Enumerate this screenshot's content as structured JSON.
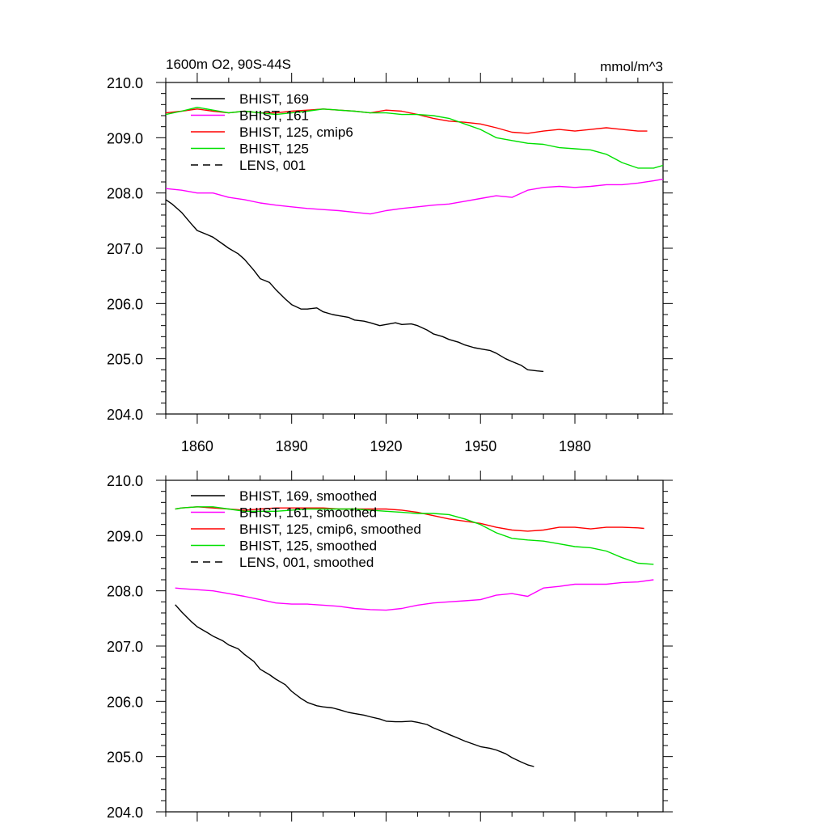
{
  "chart_data": [
    {
      "type": "line",
      "title_left": "1600m O2, 90S-44S",
      "title_right": "mmol/m^3",
      "xlim": [
        1850,
        2008
      ],
      "ylim": [
        204.0,
        210.0
      ],
      "x_ticks": [
        1860,
        1890,
        1920,
        1950,
        1980
      ],
      "x_tick_labels": [
        "1860",
        "1890",
        "1920",
        "1950",
        "1980"
      ],
      "y_ticks": [
        204.0,
        205.0,
        206.0,
        207.0,
        208.0,
        209.0,
        210.0
      ],
      "y_tick_labels": [
        "204.0",
        "205.0",
        "206.0",
        "207.0",
        "208.0",
        "209.0",
        "210.0"
      ],
      "legend_position": "top-left",
      "series": [
        {
          "name": "BHIST, 169",
          "color": "#000000",
          "dash": "solid",
          "x": [
            1850,
            1852,
            1855,
            1858,
            1860,
            1863,
            1865,
            1868,
            1870,
            1873,
            1875,
            1878,
            1880,
            1883,
            1885,
            1888,
            1890,
            1893,
            1895,
            1898,
            1900,
            1903,
            1905,
            1908,
            1910,
            1913,
            1915,
            1918,
            1920,
            1923,
            1925,
            1928,
            1930,
            1933,
            1935,
            1938,
            1940,
            1943,
            1945,
            1948,
            1950,
            1953,
            1955,
            1958,
            1960,
            1963,
            1965,
            1968,
            1970
          ],
          "y": [
            207.88,
            207.8,
            207.65,
            207.45,
            207.32,
            207.25,
            207.2,
            207.08,
            207.0,
            206.9,
            206.8,
            206.6,
            206.45,
            206.38,
            206.25,
            206.08,
            205.98,
            205.9,
            205.9,
            205.92,
            205.85,
            205.8,
            205.78,
            205.75,
            205.7,
            205.68,
            205.65,
            205.6,
            205.62,
            205.65,
            205.62,
            205.63,
            205.6,
            205.52,
            205.45,
            205.4,
            205.35,
            205.3,
            205.25,
            205.2,
            205.18,
            205.15,
            205.1,
            205.0,
            204.95,
            204.88,
            204.8,
            204.78,
            204.77
          ]
        },
        {
          "name": "BHIST, 161",
          "color": "#ff00ff",
          "dash": "solid",
          "x": [
            1850,
            1855,
            1860,
            1865,
            1870,
            1875,
            1880,
            1885,
            1890,
            1895,
            1900,
            1905,
            1910,
            1915,
            1920,
            1925,
            1930,
            1935,
            1940,
            1945,
            1950,
            1955,
            1960,
            1965,
            1970,
            1975,
            1980,
            1985,
            1990,
            1995,
            2000,
            2005,
            2008
          ],
          "y": [
            208.08,
            208.05,
            208.0,
            208.0,
            207.92,
            207.88,
            207.82,
            207.78,
            207.75,
            207.72,
            207.7,
            207.68,
            207.65,
            207.62,
            207.68,
            207.72,
            207.75,
            207.78,
            207.8,
            207.85,
            207.9,
            207.95,
            207.92,
            208.05,
            208.1,
            208.12,
            208.1,
            208.12,
            208.15,
            208.15,
            208.18,
            208.22,
            208.25
          ]
        },
        {
          "name": "BHIST, 125, cmip6",
          "color": "#ff0000",
          "dash": "solid",
          "x": [
            1850,
            1855,
            1860,
            1865,
            1870,
            1875,
            1880,
            1885,
            1890,
            1895,
            1900,
            1905,
            1910,
            1915,
            1920,
            1925,
            1930,
            1935,
            1940,
            1945,
            1950,
            1955,
            1960,
            1965,
            1970,
            1975,
            1980,
            1985,
            1990,
            1995,
            2000,
            2003
          ],
          "y": [
            209.45,
            209.48,
            209.52,
            209.48,
            209.45,
            209.48,
            209.45,
            209.45,
            209.48,
            209.5,
            209.52,
            209.5,
            209.48,
            209.45,
            209.5,
            209.48,
            209.42,
            209.35,
            209.3,
            209.28,
            209.25,
            209.18,
            209.1,
            209.08,
            209.12,
            209.15,
            209.12,
            209.15,
            209.18,
            209.15,
            209.12,
            209.12
          ]
        },
        {
          "name": "BHIST, 125",
          "color": "#00e000",
          "dash": "solid",
          "x": [
            1850,
            1855,
            1860,
            1865,
            1870,
            1875,
            1880,
            1885,
            1890,
            1895,
            1900,
            1905,
            1910,
            1915,
            1920,
            1925,
            1930,
            1935,
            1940,
            1945,
            1950,
            1955,
            1960,
            1965,
            1970,
            1975,
            1980,
            1985,
            1990,
            1995,
            2000,
            2003,
            2005,
            2008
          ],
          "y": [
            209.42,
            209.48,
            209.55,
            209.5,
            209.45,
            209.48,
            209.45,
            209.42,
            209.45,
            209.48,
            209.52,
            209.5,
            209.48,
            209.45,
            209.45,
            209.42,
            209.42,
            209.4,
            209.35,
            209.25,
            209.15,
            209.0,
            208.95,
            208.9,
            208.88,
            208.82,
            208.8,
            208.78,
            208.7,
            208.55,
            208.45,
            208.45,
            208.45,
            208.5
          ]
        },
        {
          "name": "LENS, 001",
          "color": "#000000",
          "dash": "dashed",
          "x": [],
          "y": []
        }
      ]
    },
    {
      "type": "line",
      "xlim": [
        1850,
        2008
      ],
      "ylim": [
        204.0,
        210.0
      ],
      "x_ticks": [
        1860,
        1890,
        1920,
        1950,
        1980
      ],
      "y_ticks": [
        204.0,
        205.0,
        206.0,
        207.0,
        208.0,
        209.0,
        210.0
      ],
      "y_tick_labels": [
        "204.0",
        "205.0",
        "206.0",
        "207.0",
        "208.0",
        "209.0",
        "210.0"
      ],
      "legend_position": "top-left",
      "series": [
        {
          "name": "BHIST, 169, smoothed",
          "color": "#000000",
          "dash": "solid",
          "x": [
            1853,
            1855,
            1858,
            1860,
            1863,
            1865,
            1868,
            1870,
            1873,
            1875,
            1878,
            1880,
            1883,
            1885,
            1888,
            1890,
            1893,
            1895,
            1898,
            1900,
            1903,
            1905,
            1908,
            1910,
            1913,
            1915,
            1918,
            1920,
            1923,
            1925,
            1928,
            1930,
            1933,
            1935,
            1938,
            1940,
            1943,
            1945,
            1948,
            1950,
            1953,
            1955,
            1958,
            1960,
            1963,
            1965,
            1967
          ],
          "y": [
            207.75,
            207.62,
            207.45,
            207.35,
            207.25,
            207.18,
            207.1,
            207.02,
            206.95,
            206.85,
            206.72,
            206.58,
            206.48,
            206.4,
            206.3,
            206.18,
            206.05,
            205.98,
            205.92,
            205.9,
            205.88,
            205.85,
            205.8,
            205.78,
            205.75,
            205.72,
            205.68,
            205.64,
            205.63,
            205.63,
            205.64,
            205.62,
            205.58,
            205.52,
            205.45,
            205.4,
            205.33,
            205.28,
            205.22,
            205.18,
            205.15,
            205.12,
            205.05,
            204.98,
            204.9,
            204.85,
            204.82
          ]
        },
        {
          "name": "BHIST, 161, smoothed",
          "color": "#ff00ff",
          "dash": "solid",
          "x": [
            1853,
            1855,
            1860,
            1865,
            1870,
            1875,
            1880,
            1885,
            1890,
            1895,
            1900,
            1905,
            1910,
            1915,
            1920,
            1925,
            1930,
            1935,
            1940,
            1945,
            1950,
            1955,
            1960,
            1965,
            1970,
            1975,
            1980,
            1985,
            1990,
            1995,
            2000,
            2005
          ],
          "y": [
            208.05,
            208.04,
            208.02,
            208.0,
            207.95,
            207.9,
            207.84,
            207.78,
            207.76,
            207.76,
            207.74,
            207.72,
            207.68,
            207.66,
            207.65,
            207.68,
            207.74,
            207.78,
            207.8,
            207.82,
            207.84,
            207.92,
            207.95,
            207.9,
            208.05,
            208.08,
            208.12,
            208.12,
            208.12,
            208.15,
            208.16,
            208.2
          ]
        },
        {
          "name": "BHIST, 125, cmip6, smoothed",
          "color": "#ff0000",
          "dash": "solid",
          "x": [
            1853,
            1855,
            1860,
            1865,
            1870,
            1875,
            1880,
            1885,
            1890,
            1895,
            1900,
            1905,
            1910,
            1915,
            1920,
            1925,
            1930,
            1935,
            1940,
            1945,
            1950,
            1955,
            1960,
            1965,
            1970,
            1975,
            1980,
            1985,
            1990,
            1995,
            2000,
            2002
          ],
          "y": [
            209.48,
            209.5,
            209.52,
            209.5,
            209.48,
            209.46,
            209.48,
            209.5,
            209.5,
            209.5,
            209.5,
            209.48,
            209.48,
            209.48,
            209.48,
            209.46,
            209.42,
            209.36,
            209.3,
            209.26,
            209.22,
            209.15,
            209.1,
            209.08,
            209.1,
            209.15,
            209.15,
            209.12,
            209.15,
            209.15,
            209.14,
            209.13
          ]
        },
        {
          "name": "BHIST, 125, smoothed",
          "color": "#00e000",
          "dash": "solid",
          "x": [
            1853,
            1855,
            1860,
            1865,
            1870,
            1875,
            1880,
            1885,
            1890,
            1895,
            1900,
            1905,
            1910,
            1915,
            1920,
            1925,
            1930,
            1935,
            1940,
            1945,
            1950,
            1955,
            1960,
            1965,
            1970,
            1975,
            1980,
            1985,
            1990,
            1995,
            2000,
            2005
          ],
          "y": [
            209.48,
            209.5,
            209.52,
            209.52,
            209.48,
            209.44,
            209.44,
            209.44,
            209.46,
            209.48,
            209.48,
            209.48,
            209.48,
            209.46,
            209.44,
            209.42,
            209.4,
            209.4,
            209.38,
            209.3,
            209.2,
            209.05,
            208.95,
            208.92,
            208.9,
            208.85,
            208.8,
            208.78,
            208.72,
            208.6,
            208.5,
            208.48
          ]
        },
        {
          "name": "LENS, 001, smoothed",
          "color": "#000000",
          "dash": "dashed",
          "x": [],
          "y": []
        }
      ]
    }
  ]
}
